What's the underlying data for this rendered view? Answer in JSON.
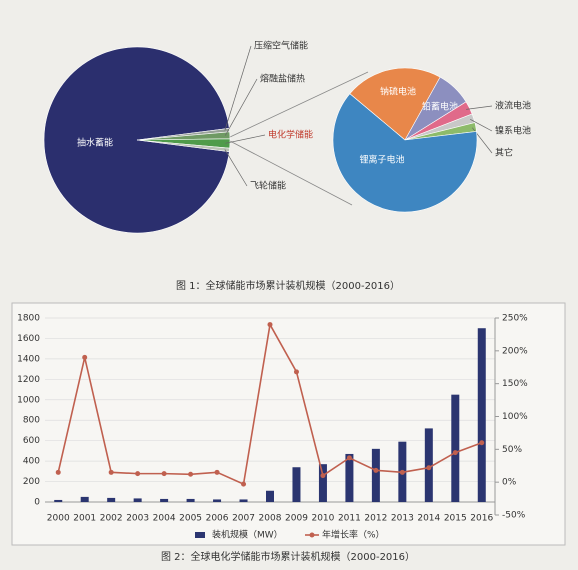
{
  "chart_data": [
    {
      "type": "pie",
      "title": "图 1：全球储能市场累计装机规模（2000-2016）",
      "categories": [
        "抽水蓄能",
        "压缩空气储能",
        "熔融盐储热",
        "电化学储能",
        "飞轮储能"
      ],
      "values": [
        96,
        0.6,
        1.2,
        1.6,
        0.6
      ],
      "colors": [
        "#2b2f6e",
        "#9aa39a",
        "#6f9a64",
        "#4f9b4a",
        "#b9c2b4"
      ]
    },
    {
      "type": "pie",
      "categories": [
        "钠硫电池",
        "铅蓄电池",
        "液流电池",
        "镍系电池",
        "其它",
        "锂离子电池"
      ],
      "values": [
        22,
        8,
        3,
        2,
        2,
        63
      ],
      "colors": [
        "#e8874a",
        "#8c8fbf",
        "#e06a8a",
        "#c8c8c8",
        "#8dbb6a",
        "#3e86c1"
      ]
    },
    {
      "type": "bar-line",
      "title": "图 2：全球电化学储能市场累计装机规模（2000-2016）",
      "categories": [
        "2000",
        "2001",
        "2002",
        "2003",
        "2004",
        "2005",
        "2006",
        "2007",
        "2008",
        "2009",
        "2010",
        "2011",
        "2012",
        "2013",
        "2014",
        "2015",
        "2016"
      ],
      "series": [
        {
          "name": "装机规模（MW）",
          "color": "#2b3570",
          "values": [
            20,
            50,
            40,
            35,
            30,
            30,
            25,
            25,
            110,
            340,
            370,
            470,
            520,
            590,
            720,
            1050,
            1700
          ]
        },
        {
          "name": "年增长率（%）",
          "color": "#c0604f",
          "axis": "y2",
          "values": [
            15,
            190,
            15,
            13,
            13,
            12,
            15,
            -3,
            240,
            168,
            10,
            37,
            18,
            15,
            22,
            45,
            60
          ]
        }
      ],
      "ylim": [
        0,
        1800
      ],
      "yticks": [
        0,
        200,
        400,
        600,
        800,
        1000,
        1200,
        1400,
        1600,
        1800
      ],
      "y2lim": [
        -50,
        250
      ],
      "y2ticks": [
        {
          "value": -50,
          "label": "-50%"
        },
        {
          "value": 0,
          "label": "0%"
        },
        {
          "value": 50,
          "label": "50%"
        },
        {
          "value": 100,
          "label": "100%"
        },
        {
          "value": 150,
          "label": "150%"
        },
        {
          "value": 200,
          "label": "200%"
        },
        {
          "value": 250,
          "label": "250%"
        }
      ]
    }
  ]
}
